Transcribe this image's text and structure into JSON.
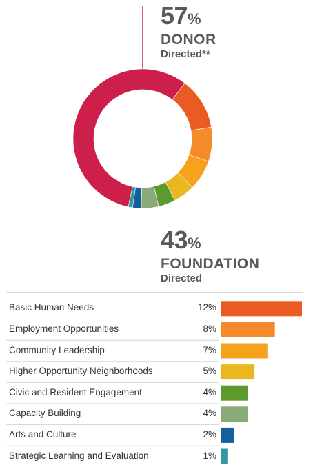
{
  "donor": {
    "percent": "57",
    "percent_symbol": "%",
    "title": "DONOR",
    "subtitle": "Directed**"
  },
  "foundation": {
    "percent": "43",
    "percent_symbol": "%",
    "title": "FOUNDATION",
    "subtitle": "Directed"
  },
  "colors": {
    "donor": "#cc1f4a",
    "divider_line_top": "#c62a4c",
    "table_rule": "#c9d3d8",
    "row_rule": "#c9cfd3"
  },
  "chart_data": [
    {
      "type": "pie",
      "variant": "donut",
      "slices": [
        {
          "name": "Donor Directed",
          "value": 57,
          "color": "#cc1f4a"
        },
        {
          "name": "Basic Human Needs",
          "value": 12,
          "color": "#ec5a24"
        },
        {
          "name": "Employment Opportunities",
          "value": 8,
          "color": "#f58a2a"
        },
        {
          "name": "Community Leadership",
          "value": 7,
          "color": "#f6a21c"
        },
        {
          "name": "Higher Opportunity Neighborhoods",
          "value": 5,
          "color": "#e9b821"
        },
        {
          "name": "Civic and Resident Engagement",
          "value": 4,
          "color": "#5c9a2e"
        },
        {
          "name": "Capacity Building",
          "value": 4,
          "color": "#8aaa78"
        },
        {
          "name": "Arts and Culture",
          "value": 2,
          "color": "#15609c"
        },
        {
          "name": "Strategic Learning and Evaluation",
          "value": 1,
          "color": "#3497a5"
        }
      ]
    },
    {
      "type": "bar",
      "orientation": "horizontal",
      "categories": [
        "Basic Human Needs",
        "Employment Opportunities",
        "Community Leadership",
        "Higher Opportunity Neighborhoods",
        "Civic and Resident Engagement",
        "Capacity Building",
        "Arts and Culture",
        "Strategic Learning and Evaluation"
      ],
      "values": [
        12,
        8,
        7,
        5,
        4,
        4,
        2,
        1
      ],
      "value_labels": [
        "12%",
        "8%",
        "7%",
        "5%",
        "4%",
        "4%",
        "2%",
        "1%"
      ],
      "colors": [
        "#ec5a24",
        "#f58a2a",
        "#f6a21c",
        "#e9b821",
        "#5c9a2e",
        "#8aaa78",
        "#15609c",
        "#3497a5"
      ],
      "xlim": [
        0,
        12
      ]
    }
  ]
}
